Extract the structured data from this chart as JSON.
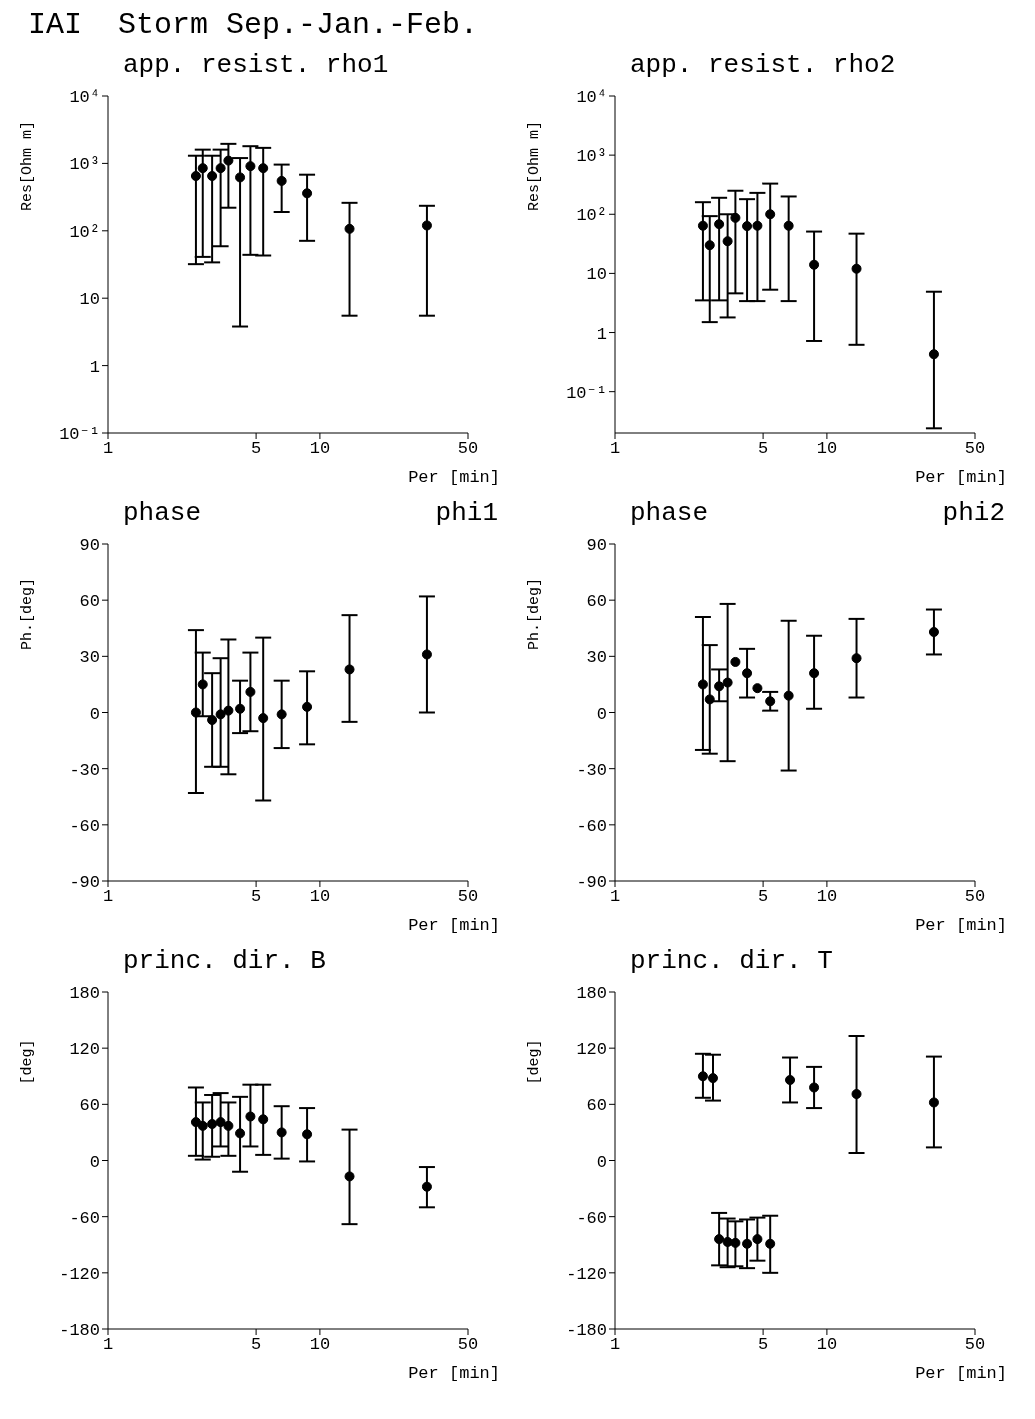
{
  "chart_data": [
    {
      "type": "scatter",
      "title": "IAI  Storm Sep.-Jan.-Feb.",
      "subtitle": "app. resist. rho1",
      "xlabel": "Per [min]",
      "ylabel": "Res[Ohm m]",
      "log": "xy",
      "marker": "circle",
      "color": "#000000",
      "x": [
        2.6,
        2.8,
        3.1,
        3.4,
        3.7,
        4.2,
        4.7,
        5.4,
        6.6,
        8.7,
        13.8,
        32
      ],
      "xlim": [
        1,
        50
      ],
      "xticks": [
        1,
        5,
        10,
        50
      ],
      "ylim": [
        0.1,
        10000
      ],
      "yticks": [
        {
          "value": 0.1,
          "label": "10⁻¹"
        },
        1,
        10,
        {
          "value": 100,
          "label": "10²"
        },
        {
          "value": 1000,
          "label": "10³"
        },
        {
          "value": 10000,
          "label": "10⁴"
        }
      ],
      "values": [
        650,
        850,
        650,
        850,
        1100,
        620,
        910,
        850,
        550,
        360,
        107,
        120
      ],
      "errors": [
        [
          32,
          1300
        ],
        [
          41,
          1600
        ],
        [
          34,
          1300
        ],
        [
          59,
          1600
        ],
        [
          220,
          1950
        ],
        [
          3.8,
          1200
        ],
        [
          44,
          1800
        ],
        [
          43,
          1700
        ],
        [
          190,
          960
        ],
        [
          71,
          680
        ],
        [
          5.5,
          260
        ],
        [
          5.5,
          235
        ]
      ]
    },
    {
      "type": "scatter",
      "subtitle": "app. resist. rho2",
      "xlabel": "Per [min]",
      "ylabel": "Res[Ohm m]",
      "log": "xy",
      "marker": "circle",
      "color": "#000000",
      "x": [
        2.6,
        2.8,
        3.1,
        3.4,
        3.7,
        4.2,
        4.7,
        5.4,
        6.6,
        8.7,
        13.8,
        32
      ],
      "xlim": [
        1,
        50
      ],
      "xticks": [
        1,
        5,
        10,
        50
      ],
      "ylim": [
        0.02,
        10000
      ],
      "yticks": [
        {
          "value": 0.1,
          "label": "10⁻¹"
        },
        1,
        10,
        {
          "value": 100,
          "label": "10²"
        },
        {
          "value": 1000,
          "label": "10³"
        },
        {
          "value": 10000,
          "label": "10⁴"
        }
      ],
      "values": [
        64,
        30,
        68,
        35,
        87,
        63,
        64,
        100,
        64,
        14,
        12,
        0.43
      ],
      "errors": [
        [
          3.5,
          160
        ],
        [
          1.5,
          93
        ],
        [
          3.5,
          190
        ],
        [
          1.8,
          100
        ],
        [
          4.6,
          250
        ],
        [
          3.4,
          180
        ],
        [
          3.4,
          230
        ],
        [
          5.3,
          330
        ],
        [
          3.4,
          200
        ],
        [
          0.72,
          51
        ],
        [
          0.62,
          47
        ],
        [
          0.024,
          4.9
        ]
      ]
    },
    {
      "type": "scatter",
      "subtitle": "phase",
      "annotations": [
        "phi1"
      ],
      "xlabel": "Per [min]",
      "ylabel": "Ph.[deg]",
      "log": "x",
      "marker": "circle",
      "color": "#000000",
      "x": [
        2.6,
        2.8,
        3.1,
        3.4,
        3.7,
        4.2,
        4.7,
        5.4,
        6.6,
        8.7,
        13.8,
        32
      ],
      "xlim": [
        1,
        50
      ],
      "xticks": [
        1,
        5,
        10,
        50
      ],
      "ylim": [
        -90,
        90
      ],
      "yticks": [
        -90,
        -60,
        -30,
        0,
        30,
        60,
        90
      ],
      "values": [
        0,
        15,
        -4,
        -1,
        1,
        2,
        11,
        -3,
        -1,
        3,
        23,
        31
      ],
      "errors": [
        [
          -43,
          44
        ],
        [
          -2,
          32
        ],
        [
          -29,
          21
        ],
        [
          -29,
          29
        ],
        [
          -33,
          39
        ],
        [
          -11,
          17
        ],
        [
          -10,
          32
        ],
        [
          -47,
          40
        ],
        [
          -19,
          17
        ],
        [
          -17,
          22
        ],
        [
          -5,
          52
        ],
        [
          0,
          62
        ]
      ]
    },
    {
      "type": "scatter",
      "subtitle": "phase",
      "annotations": [
        "phi2"
      ],
      "xlabel": "Per [min]",
      "ylabel": "Ph.[deg]",
      "log": "x",
      "marker": "circle",
      "color": "#000000",
      "x": [
        2.6,
        2.8,
        3.1,
        3.4,
        3.7,
        4.2,
        4.7,
        5.4,
        6.6,
        8.7,
        13.8,
        32
      ],
      "xlim": [
        1,
        50
      ],
      "xticks": [
        1,
        5,
        10,
        50
      ],
      "ylim": [
        -90,
        90
      ],
      "yticks": [
        -90,
        -60,
        -30,
        0,
        30,
        60,
        90
      ],
      "values": [
        15,
        7,
        14,
        16,
        27,
        21,
        13,
        6,
        9,
        21,
        29,
        43
      ],
      "errors": [
        [
          -20,
          51
        ],
        [
          -22,
          36
        ],
        [
          6,
          23
        ],
        [
          -26,
          58
        ],
        null,
        [
          8,
          34
        ],
        null,
        [
          1,
          11
        ],
        [
          -31,
          49
        ],
        [
          2,
          41
        ],
        [
          8,
          50
        ],
        [
          31,
          55
        ]
      ]
    },
    {
      "type": "scatter",
      "subtitle": "princ. dir. B",
      "xlabel": "Per [min]",
      "ylabel": "[deg]",
      "log": "x",
      "marker": "circle",
      "color": "#000000",
      "x": [
        2.6,
        2.8,
        3.1,
        3.4,
        3.7,
        4.2,
        4.7,
        5.4,
        6.6,
        8.7,
        13.8,
        32
      ],
      "xlim": [
        1,
        50
      ],
      "xticks": [
        1,
        5,
        10,
        50
      ],
      "ylim": [
        -180,
        180
      ],
      "yticks": [
        -180,
        -120,
        -60,
        0,
        60,
        120,
        180
      ],
      "values": [
        41,
        37,
        39,
        41,
        37,
        29,
        47,
        44,
        30,
        28,
        -17,
        -28
      ],
      "errors": [
        [
          5,
          78
        ],
        [
          1,
          62
        ],
        [
          4,
          70
        ],
        [
          15,
          72
        ],
        [
          5,
          62
        ],
        [
          -12,
          68
        ],
        [
          15,
          81
        ],
        [
          6,
          81
        ],
        [
          2,
          58
        ],
        [
          -1,
          56
        ],
        [
          -68,
          33
        ],
        [
          -50,
          -7
        ]
      ]
    },
    {
      "type": "scatter",
      "subtitle": "princ. dir. T",
      "xlabel": "Per [min]",
      "ylabel": "[deg]",
      "log": "x",
      "marker": "circle",
      "color": "#000000",
      "x": [
        2.6,
        2.9,
        3.1,
        3.4,
        3.7,
        4.2,
        4.7,
        5.4,
        6.7,
        8.7,
        13.8,
        32
      ],
      "xlim": [
        1,
        50
      ],
      "xticks": [
        1,
        5,
        10,
        50
      ],
      "ylim": [
        -180,
        180
      ],
      "yticks": [
        -180,
        -120,
        -60,
        0,
        60,
        120,
        180
      ],
      "values": [
        90,
        88,
        -84,
        -87,
        -88,
        -89,
        -84,
        -89,
        86,
        78,
        71,
        62
      ],
      "errors": [
        [
          67,
          114
        ],
        [
          64,
          113
        ],
        [
          -112,
          -56
        ],
        [
          -114,
          -62
        ],
        [
          -113,
          -65
        ],
        [
          -115,
          -63
        ],
        [
          -107,
          -61
        ],
        [
          -120,
          -59
        ],
        [
          62,
          110
        ],
        [
          56,
          100
        ],
        [
          8,
          133
        ],
        [
          14,
          111
        ]
      ]
    }
  ]
}
